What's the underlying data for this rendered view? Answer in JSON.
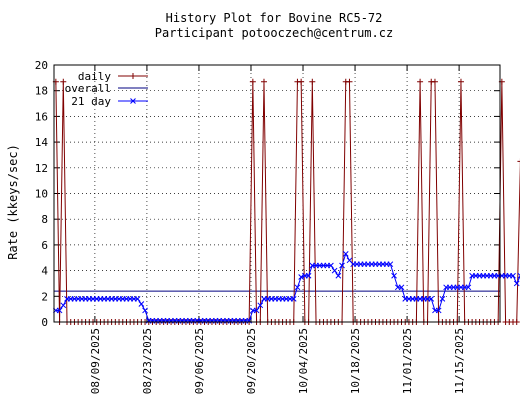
{
  "chart_data": {
    "type": "line",
    "title": "History Plot for Bovine RC5-72",
    "subtitle": "Participant potooczech@centrum.cz",
    "xlabel": "",
    "ylabel": "Rate (kkeys/sec)",
    "ylim": [
      0,
      20
    ],
    "y_ticks": [
      0,
      2,
      4,
      6,
      8,
      10,
      12,
      14,
      16,
      18,
      20
    ],
    "x_range": [
      "2025-07-29",
      "2025-11-26"
    ],
    "x_ticks": [
      "08/09/2025",
      "08/23/2025",
      "09/06/2025",
      "09/20/2025",
      "10/04/2025",
      "10/18/2025",
      "11/01/2025",
      "11/15/2025"
    ],
    "grid": true,
    "legend_position": "top-left",
    "series": [
      {
        "name": "daily",
        "style": "lines-with-plus-markers",
        "color": "#800000",
        "values": [
          18.7,
          0,
          18.7,
          0,
          0,
          0,
          0,
          0,
          0,
          0,
          0,
          0,
          0,
          0,
          0,
          0,
          0,
          0,
          0,
          0,
          0,
          0,
          0,
          0,
          0,
          0,
          0,
          0,
          0,
          0,
          0,
          0,
          0,
          0,
          0,
          0,
          0,
          0,
          0,
          0,
          0,
          0,
          0,
          0,
          0,
          0,
          0,
          0,
          0,
          0,
          0,
          0,
          0,
          18.7,
          0,
          0,
          18.7,
          0,
          0,
          0,
          0,
          0,
          0,
          0,
          0,
          18.7,
          18.7,
          0,
          0,
          18.7,
          0,
          0,
          0,
          0,
          0,
          0,
          0,
          0,
          18.7,
          18.7,
          0,
          0,
          0,
          0,
          0,
          0,
          0,
          0,
          0,
          0,
          0,
          0,
          0,
          0,
          0,
          0,
          0,
          0,
          18.7,
          0,
          0,
          18.7,
          18.7,
          0,
          0,
          0,
          0,
          0,
          0,
          18.7,
          0,
          0,
          0,
          0,
          0,
          0,
          0,
          0,
          0,
          0,
          18.7,
          0,
          0,
          0,
          0,
          12.5
        ]
      },
      {
        "name": "overall",
        "style": "line",
        "color": "#000080",
        "values": [
          2.4
        ]
      },
      {
        "name": "21 day",
        "style": "lines-with-x-markers",
        "color": "#0000ff",
        "values": [
          0.9,
          0.9,
          1.3,
          1.8,
          1.8,
          1.8,
          1.8,
          1.8,
          1.8,
          1.8,
          1.8,
          1.8,
          1.8,
          1.8,
          1.8,
          1.8,
          1.8,
          1.8,
          1.8,
          1.8,
          1.8,
          1.8,
          1.8,
          1.4,
          0.9,
          0.1,
          0.1,
          0.1,
          0.1,
          0.1,
          0.1,
          0.1,
          0.1,
          0.1,
          0.1,
          0.1,
          0.1,
          0.1,
          0.1,
          0.1,
          0.1,
          0.1,
          0.1,
          0.1,
          0.1,
          0.1,
          0.1,
          0.1,
          0.1,
          0.1,
          0.1,
          0.1,
          0.1,
          0.9,
          0.9,
          1.3,
          1.8,
          1.8,
          1.8,
          1.8,
          1.8,
          1.8,
          1.8,
          1.8,
          1.8,
          2.7,
          3.5,
          3.6,
          3.6,
          4.4,
          4.4,
          4.4,
          4.4,
          4.4,
          4.4,
          4.0,
          3.6,
          4.4,
          5.3,
          4.8,
          4.5,
          4.5,
          4.5,
          4.5,
          4.5,
          4.5,
          4.5,
          4.5,
          4.5,
          4.5,
          4.5,
          3.6,
          2.7,
          2.7,
          1.8,
          1.8,
          1.8,
          1.8,
          1.8,
          1.8,
          1.8,
          1.8,
          0.9,
          0.9,
          1.8,
          2.7,
          2.7,
          2.7,
          2.7,
          2.7,
          2.7,
          2.7,
          3.6,
          3.6,
          3.6,
          3.6,
          3.6,
          3.6,
          3.6,
          3.6,
          3.6,
          3.6,
          3.6,
          3.6,
          3.0,
          3.6,
          2.7,
          2.2,
          1.8,
          2.3
        ]
      }
    ]
  }
}
